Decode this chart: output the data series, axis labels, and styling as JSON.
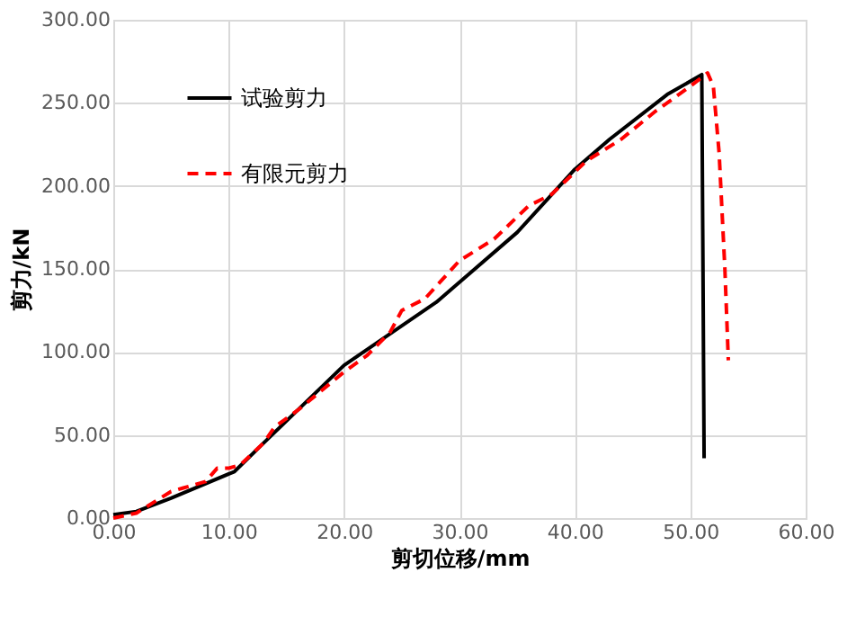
{
  "chart_data": {
    "type": "line",
    "xlabel": "剪切位移/mm",
    "ylabel": "剪力/kN",
    "xlim": [
      0,
      60
    ],
    "ylim": [
      0,
      300
    ],
    "xticks": [
      {
        "value": 0,
        "label": "0.00"
      },
      {
        "value": 10,
        "label": "10.00"
      },
      {
        "value": 20,
        "label": "20.00"
      },
      {
        "value": 30,
        "label": "30.00"
      },
      {
        "value": 40,
        "label": "40.00"
      },
      {
        "value": 50,
        "label": "50.00"
      },
      {
        "value": 60,
        "label": "60.00"
      }
    ],
    "yticks": [
      {
        "value": 0,
        "label": "0.00"
      },
      {
        "value": 50,
        "label": "50.00"
      },
      {
        "value": 100,
        "label": "100.00"
      },
      {
        "value": 150,
        "label": "150.00"
      },
      {
        "value": 200,
        "label": "200.00"
      },
      {
        "value": 250,
        "label": "250.00"
      },
      {
        "value": 300,
        "label": "300.00"
      }
    ],
    "grid": true,
    "legend": "top left",
    "marker": "none",
    "series": [
      {
        "name": "试验剪力",
        "color": "#000000",
        "line_style": "solid",
        "x": [
          0,
          2,
          5,
          10.5,
          13,
          20,
          28,
          35,
          40,
          43,
          48,
          51,
          51.2
        ],
        "values": [
          2,
          4,
          12,
          28,
          45,
          92,
          130,
          172,
          210,
          228,
          255,
          267,
          36
        ]
      },
      {
        "name": "有限元剪力",
        "color": "#ff0000",
        "line_style": "dashed",
        "x": [
          0,
          2,
          5,
          6,
          8,
          9,
          10,
          11,
          13,
          14,
          16,
          20,
          22,
          24,
          25,
          27,
          30,
          33,
          36,
          38,
          41,
          44,
          47,
          50,
          51.5,
          52,
          52.5,
          53,
          53.3
        ],
        "values": [
          0,
          3,
          16,
          18,
          22,
          30,
          30,
          32,
          45,
          55,
          65,
          88,
          98,
          112,
          125,
          132,
          155,
          168,
          188,
          195,
          215,
          228,
          245,
          260,
          268,
          260,
          220,
          150,
          95
        ]
      }
    ]
  }
}
